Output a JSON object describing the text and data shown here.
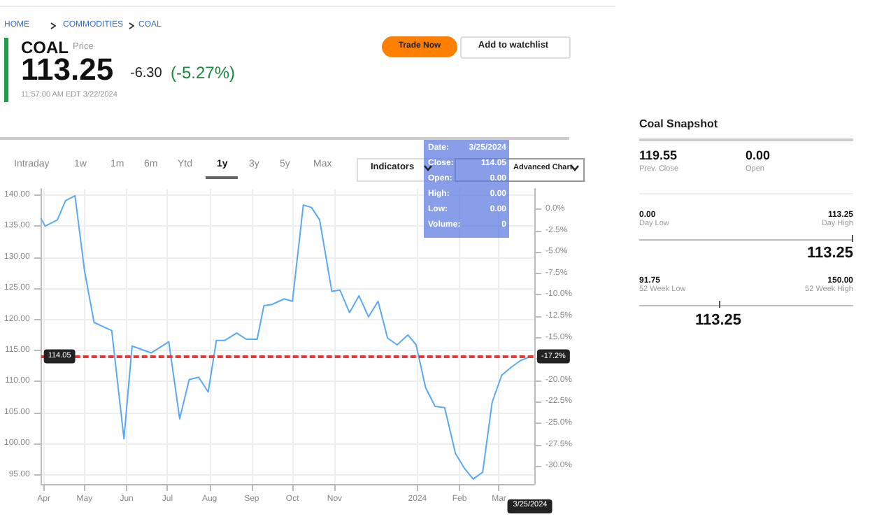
{
  "chart_data": {
    "type": "line",
    "title": "COAL",
    "x": [
      "2023-03-30",
      "2023-04-02",
      "2023-04-11",
      "2023-04-17",
      "2023-04-24",
      "2023-05-01",
      "2023-05-08",
      "2023-05-21",
      "2023-05-30",
      "2023-06-05",
      "2023-06-19",
      "2023-07-02",
      "2023-07-10",
      "2023-07-17",
      "2023-07-24",
      "2023-07-31",
      "2023-08-06",
      "2023-08-12",
      "2023-08-21",
      "2023-08-28",
      "2023-09-05",
      "2023-09-10",
      "2023-09-16",
      "2023-09-25",
      "2023-10-01",
      "2023-10-09",
      "2023-10-15",
      "2023-10-21",
      "2023-10-30",
      "2023-11-05",
      "2023-11-12",
      "2023-11-19",
      "2023-11-26",
      "2023-12-03",
      "2023-12-10",
      "2023-12-17",
      "2023-12-25",
      "2023-12-31",
      "2024-01-07",
      "2024-01-14",
      "2024-01-21",
      "2024-01-29",
      "2024-02-05",
      "2024-02-11",
      "2024-02-18",
      "2024-02-25",
      "2024-03-03",
      "2024-03-10",
      "2024-03-17",
      "2024-03-25"
    ],
    "series": [
      {
        "color": "#5aa9f7",
        "values": [
          136.2,
          135.0,
          136.0,
          139.1,
          139.9,
          127.8,
          119.5,
          118.2,
          100.8,
          115.7,
          114.6,
          116.4,
          104.0,
          110.3,
          110.7,
          108.3,
          116.6,
          116.6,
          117.8,
          116.8,
          116.8,
          122.2,
          122.4,
          123.3,
          122.9,
          138.4,
          138.0,
          136.0,
          124.5,
          124.7,
          121.1,
          123.8,
          120.4,
          122.9,
          117.0,
          115.9,
          117.5,
          115.9,
          109.0,
          106.0,
          105.8,
          98.4,
          95.9,
          94.3,
          95.4,
          106.7,
          111.0,
          112.3,
          113.4,
          114.05
        ]
      }
    ],
    "xlim": [
      "2023-03-30",
      "2024-03-27"
    ],
    "xticks": [
      {
        "value": "2023-04-01",
        "label": "Apr"
      },
      {
        "value": "2023-05-01",
        "label": "May"
      },
      {
        "value": "2023-06-01",
        "label": "Jun"
      },
      {
        "value": "2023-07-01",
        "label": "Jul"
      },
      {
        "value": "2023-08-01",
        "label": "Aug"
      },
      {
        "value": "2023-09-01",
        "label": "Sep"
      },
      {
        "value": "2023-10-01",
        "label": "Oct"
      },
      {
        "value": "2023-11-01",
        "label": "Nov"
      },
      {
        "value": "2024-01-01",
        "label": "2024"
      },
      {
        "value": "2024-02-01",
        "label": "Feb"
      },
      {
        "value": "2024-03-01",
        "label": "Mar"
      }
    ],
    "ylim": [
      93.5,
      141
    ],
    "yticks": [
      {
        "value": 95,
        "label": "95.00"
      },
      {
        "value": 100,
        "label": "100.00"
      },
      {
        "value": 105,
        "label": "105.00"
      },
      {
        "value": 110,
        "label": "110.00"
      },
      {
        "value": 115,
        "label": "115.00"
      },
      {
        "value": 120,
        "label": "120.00"
      },
      {
        "value": 125,
        "label": "125.00"
      },
      {
        "value": 130,
        "label": "130.00"
      },
      {
        "value": 135,
        "label": "135.00"
      },
      {
        "value": 140,
        "label": "140.00"
      }
    ],
    "y2lim": [
      -32.1,
      2.36
    ],
    "y2ticks": [
      {
        "value": 0,
        "label": "0.0%"
      },
      {
        "value": -2.5,
        "label": "-2.5%"
      },
      {
        "value": -5,
        "label": "-5.0%"
      },
      {
        "value": -7.5,
        "label": "-7.5%"
      },
      {
        "value": -10,
        "label": "-10.0%"
      },
      {
        "value": -12.5,
        "label": "-12.5%"
      },
      {
        "value": -15,
        "label": "-15.0%"
      },
      {
        "value": -17.5,
        "label": null
      },
      {
        "value": -20,
        "label": "-20.0%"
      },
      {
        "value": -22.5,
        "label": "-22.5%"
      },
      {
        "value": -25,
        "label": "-25.0%"
      },
      {
        "value": -27.5,
        "label": "-27.5%"
      },
      {
        "value": -30,
        "label": "-30.0%"
      }
    ],
    "ref_lines": [
      {
        "axis": "y",
        "value": 114.05,
        "label": "114.05",
        "color": "#e53935",
        "line_style": "dashed"
      },
      {
        "axis": "y2",
        "value": -17.2,
        "label": "-17.2%",
        "color": "#e53935",
        "line_style": "dashed"
      }
    ],
    "grid": true,
    "marker": "none",
    "line_style": "solid",
    "annotations": [
      "HOME",
      "COMMODITIES",
      "COAL",
      "Price",
      "113.25",
      "-6.30",
      "(-5.27%)",
      "11:57:00 AM EDT 3/22/2024",
      "Trade Now",
      "Add to watchlist",
      "Intraday",
      "1w",
      "1m",
      "6m",
      "Ytd",
      "1y",
      "3y",
      "5y",
      "Max",
      "Indicators",
      "Advanced Chart",
      "Date:",
      "3/25/2024",
      "Close:",
      "114.05",
      "Open:",
      "0.00",
      "High:",
      "0.00",
      "Low:",
      "0.00",
      "Volume:",
      "0",
      "Coal Snapshot",
      "119.55",
      "Prev. Close",
      "0.00",
      "Open",
      "0.00",
      "Day Low",
      "113.25",
      "Day High",
      "113.25",
      "91.75",
      "52 Week Low",
      "150.00",
      "52 Week High",
      "113.25",
      "3/25/2024"
    ]
  }
}
